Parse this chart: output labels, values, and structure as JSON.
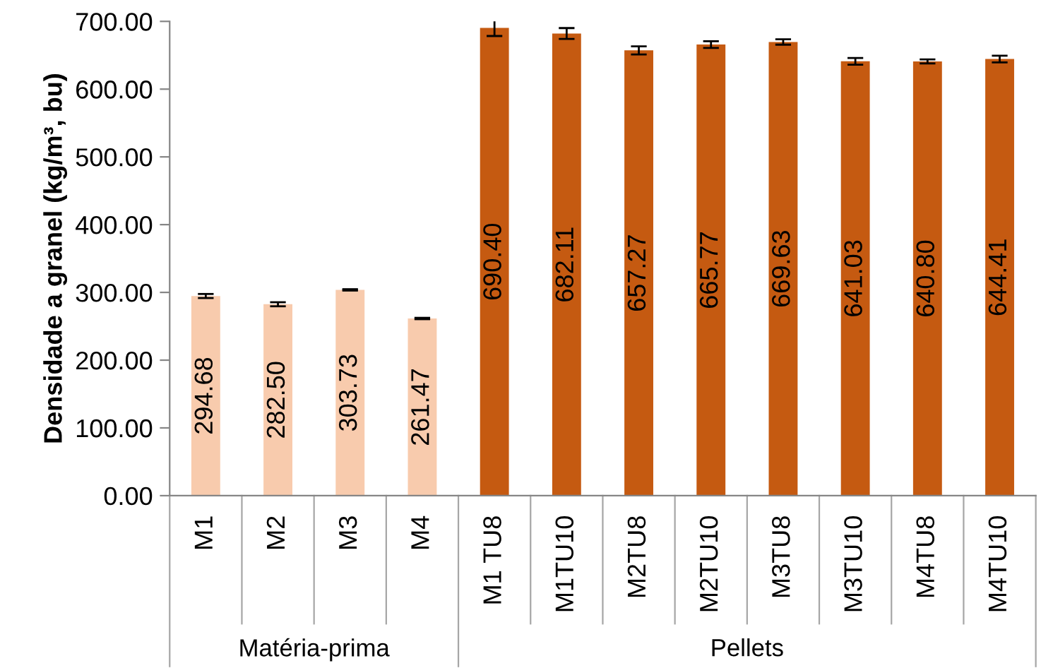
{
  "chart_data": {
    "type": "bar",
    "ylabel": "Densidade a granel (kg/m³, bu)",
    "categories": [
      "M1",
      "M2",
      "M3",
      "M4",
      "M1 TU8",
      "M1TU10",
      "M2TU8",
      "M2TU10",
      "M3TU8",
      "M3TU10",
      "M4TU8",
      "M4TU10"
    ],
    "values": [
      294.68,
      282.5,
      303.73,
      261.47,
      690.4,
      682.11,
      657.27,
      665.77,
      669.63,
      641.03,
      640.8,
      644.41
    ],
    "value_labels": [
      "294.68",
      "282.50",
      "303.73",
      "261.47",
      "690.40",
      "682.11",
      "657.27",
      "665.77",
      "669.63",
      "641.03",
      "640.80",
      "644.41"
    ],
    "errors": [
      3,
      3,
      1,
      1,
      12,
      8,
      6,
      5,
      4,
      5,
      3,
      5
    ],
    "colors": [
      "#f8cbad",
      "#f8cbad",
      "#f8cbad",
      "#f8cbad",
      "#c55a11",
      "#c55a11",
      "#c55a11",
      "#c55a11",
      "#c55a11",
      "#c55a11",
      "#c55a11",
      "#c55a11"
    ],
    "annotations": [
      "Matéria-prima",
      "Pellets"
    ],
    "ylim": [
      0,
      700
    ],
    "yticks": [
      {
        "value": 0,
        "label": "0.00"
      },
      {
        "value": 100,
        "label": "100.00"
      },
      {
        "value": 200,
        "label": "200.00"
      },
      {
        "value": 300,
        "label": "300.00"
      },
      {
        "value": 400,
        "label": "400.00"
      },
      {
        "value": 500,
        "label": "500.00"
      },
      {
        "value": 600,
        "label": "600.00"
      },
      {
        "value": 700,
        "label": "700.00"
      }
    ],
    "grid": false,
    "legend": false
  }
}
